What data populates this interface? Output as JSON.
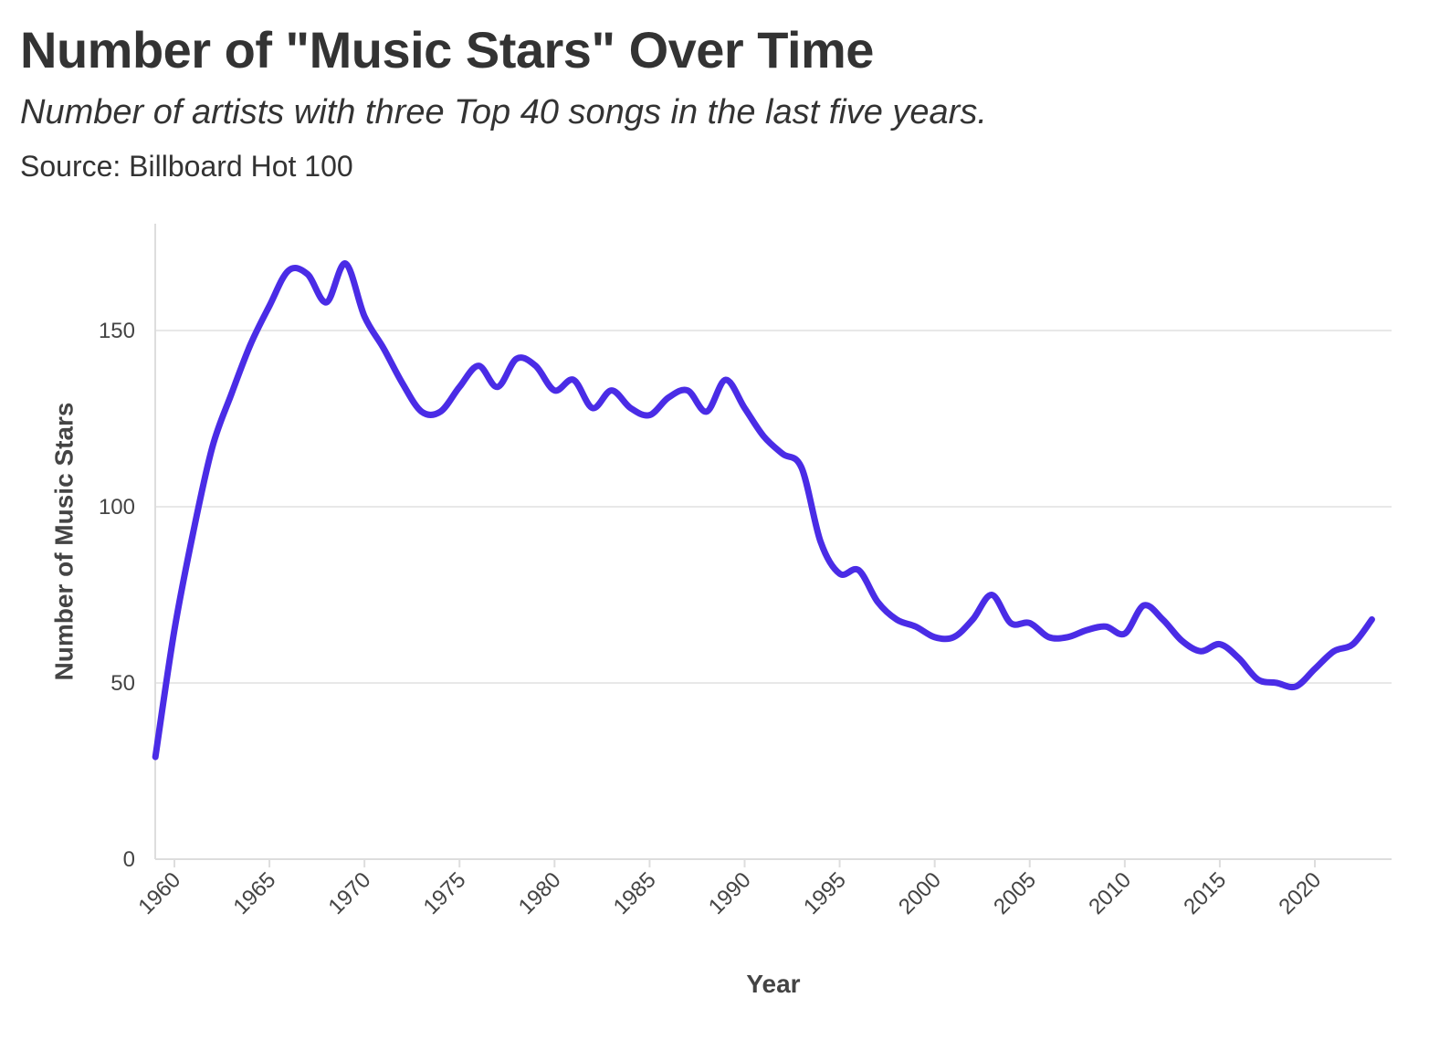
{
  "header": {
    "title": "Number of \"Music Stars\" Over Time",
    "subtitle": "Number of artists with three Top 40 songs in the last five years.",
    "source": "Source: Billboard Hot 100"
  },
  "colors": {
    "line": "#4a2ce6",
    "grid": "#e8e8e8",
    "axis": "#dddddd",
    "text": "#333333"
  },
  "chart_data": {
    "type": "line",
    "title": "Number of \"Music Stars\" Over Time",
    "subtitle": "Number of artists with three Top 40 songs in the last five years.",
    "xlabel": "Year",
    "ylabel": "Number of Music Stars",
    "xlim": [
      1959,
      2024
    ],
    "ylim": [
      0,
      180
    ],
    "x_ticks": [
      1960,
      1965,
      1970,
      1975,
      1980,
      1985,
      1990,
      1995,
      2000,
      2005,
      2010,
      2015,
      2020
    ],
    "y_ticks": [
      0,
      50,
      100,
      150
    ],
    "grid": "horizontal",
    "legend": "none",
    "series": [
      {
        "x": [
          1959,
          1960,
          1961,
          1962,
          1963,
          1964,
          1965,
          1966,
          1967,
          1968,
          1969,
          1970,
          1971,
          1972,
          1973,
          1974,
          1975,
          1976,
          1977,
          1978,
          1979,
          1980,
          1981,
          1982,
          1983,
          1984,
          1985,
          1986,
          1987,
          1988,
          1989,
          1990,
          1991,
          1992,
          1993,
          1994,
          1995,
          1996,
          1997,
          1998,
          1999,
          2000,
          2001,
          2002,
          2003,
          2004,
          2005,
          2006,
          2007,
          2008,
          2009,
          2010,
          2011,
          2012,
          2013,
          2014,
          2015,
          2016,
          2017,
          2018,
          2019,
          2020,
          2021,
          2022,
          2023
        ],
        "values": [
          29,
          65,
          93,
          117,
          132,
          146,
          157,
          167,
          166,
          158,
          169,
          154,
          145,
          135,
          127,
          127,
          134,
          140,
          134,
          142,
          140,
          133,
          136,
          128,
          133,
          128,
          126,
          131,
          133,
          127,
          136,
          128,
          120,
          115,
          111,
          90,
          81,
          82,
          73,
          68,
          66,
          63,
          63,
          68,
          75,
          67,
          67,
          63,
          63,
          65,
          66,
          64,
          72,
          68,
          62,
          59,
          61,
          57,
          51,
          50,
          49,
          54,
          59,
          61,
          68
        ]
      }
    ]
  }
}
